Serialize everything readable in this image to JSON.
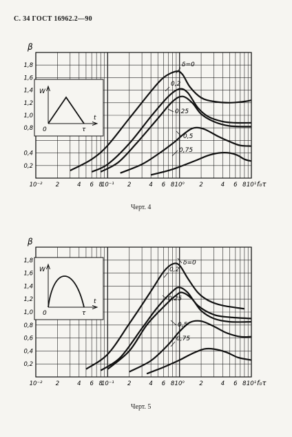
{
  "page": {
    "header": "С. 34 ГОСТ 16962.2—90"
  },
  "figures": [
    {
      "caption": "Черт. 4",
      "inset": {
        "ylabel": "W",
        "xlabel": "t",
        "origin": "0",
        "end": "τ",
        "pulse": "triangle"
      },
      "curve_labels": [
        "δ=0",
        "0,2",
        "0,25",
        "0,5",
        "0,75"
      ]
    },
    {
      "caption": "Черт. 5",
      "inset": {
        "ylabel": "W",
        "xlabel": "t",
        "origin": "0",
        "end": "τ",
        "pulse": "half-sine"
      },
      "curve_labels": [
        "δ=0",
        "0,2",
        "0,25",
        "0,5",
        "0,75"
      ]
    }
  ],
  "chart_data": [
    {
      "type": "line",
      "title": "",
      "ylabel": "β",
      "xlabel": "f₀τ",
      "x_scale": "log",
      "xlim": [
        0.01,
        10
      ],
      "ylim": [
        0,
        2.0
      ],
      "y_ticks": [
        "0,2",
        "0,4",
        "0,8",
        "1,0",
        "1,2",
        "1,4",
        "1,6",
        "1,8"
      ],
      "y_tick_values": [
        0.2,
        0.4,
        0.8,
        1.0,
        1.2,
        1.4,
        1.6,
        1.8
      ],
      "x_tick_labels": [
        "10⁻²",
        "2",
        "4",
        "6",
        "8",
        "10⁻¹",
        "2",
        "4",
        "6",
        "8",
        "10⁰",
        "2",
        "4",
        "6",
        "8",
        "10¹"
      ],
      "x_tick_values": [
        0.01,
        0.02,
        0.04,
        0.06,
        0.08,
        0.1,
        0.2,
        0.4,
        0.6,
        0.8,
        1,
        2,
        4,
        6,
        8,
        10
      ],
      "series": [
        {
          "name": "δ=0",
          "x": [
            0.03,
            0.06,
            0.1,
            0.2,
            0.4,
            0.6,
            0.9,
            1.1,
            1.4,
            2,
            3,
            5,
            8,
            10
          ],
          "y": [
            0.12,
            0.3,
            0.52,
            0.95,
            1.38,
            1.6,
            1.7,
            1.65,
            1.45,
            1.28,
            1.22,
            1.2,
            1.22,
            1.24
          ]
        },
        {
          "name": "0,2",
          "x": [
            0.06,
            0.1,
            0.2,
            0.4,
            0.7,
            1.0,
            1.3,
            1.8,
            2.5,
            4,
            6,
            10
          ],
          "y": [
            0.1,
            0.22,
            0.55,
            0.98,
            1.3,
            1.42,
            1.36,
            1.12,
            0.98,
            0.9,
            0.88,
            0.88
          ]
        },
        {
          "name": "0,25",
          "x": [
            0.08,
            0.14,
            0.25,
            0.5,
            0.8,
            1.1,
            1.5,
            2,
            3,
            5,
            10
          ],
          "y": [
            0.1,
            0.25,
            0.55,
            0.95,
            1.22,
            1.3,
            1.2,
            1.02,
            0.9,
            0.83,
            0.82
          ]
        },
        {
          "name": "0,5",
          "x": [
            0.15,
            0.3,
            0.5,
            0.8,
            1.2,
            1.6,
            2.2,
            3.5,
            5,
            7,
            10
          ],
          "y": [
            0.08,
            0.22,
            0.38,
            0.55,
            0.72,
            0.8,
            0.78,
            0.66,
            0.58,
            0.52,
            0.51
          ]
        },
        {
          "name": "0,75",
          "x": [
            0.4,
            0.7,
            1.0,
            1.6,
            2.5,
            3.5,
            5,
            6.5,
            8,
            10
          ],
          "y": [
            0.05,
            0.12,
            0.18,
            0.27,
            0.36,
            0.4,
            0.4,
            0.36,
            0.3,
            0.27
          ]
        }
      ]
    },
    {
      "type": "line",
      "title": "",
      "ylabel": "β",
      "xlabel": "f₀τ",
      "x_scale": "log",
      "xlim": [
        0.01,
        10
      ],
      "ylim": [
        0,
        2.0
      ],
      "y_ticks": [
        "0,2",
        "0,4",
        "0,6",
        "0,8",
        "1,0",
        "1,2",
        "1,4",
        "1,6",
        "1,8"
      ],
      "y_tick_values": [
        0.2,
        0.4,
        0.6,
        0.8,
        1.0,
        1.2,
        1.4,
        1.6,
        1.8
      ],
      "x_tick_labels": [
        "10⁻²",
        "2",
        "4",
        "6",
        "8",
        "10⁻¹",
        "2",
        "4",
        "6",
        "8",
        "10⁰",
        "2",
        "4",
        "6",
        "8",
        "10¹"
      ],
      "x_tick_values": [
        0.01,
        0.02,
        0.04,
        0.06,
        0.08,
        0.1,
        0.2,
        0.4,
        0.6,
        0.8,
        1,
        2,
        4,
        6,
        8,
        10
      ],
      "series": [
        {
          "name": "δ=0",
          "x": [
            0.05,
            0.1,
            0.2,
            0.4,
            0.6,
            0.8,
            1.0,
            1.3,
            1.8,
            2.5,
            4,
            8
          ],
          "y": [
            0.12,
            0.35,
            0.82,
            1.32,
            1.62,
            1.74,
            1.72,
            1.52,
            1.3,
            1.18,
            1.1,
            1.05
          ]
        },
        {
          "name": "0,2",
          "x": [
            0.08,
            0.15,
            0.3,
            0.5,
            0.8,
            1.0,
            1.3,
            1.8,
            3,
            5,
            10
          ],
          "y": [
            0.1,
            0.3,
            0.75,
            1.08,
            1.32,
            1.38,
            1.3,
            1.1,
            0.96,
            0.92,
            0.9
          ]
        },
        {
          "name": "0,25",
          "x": [
            0.1,
            0.2,
            0.35,
            0.6,
            0.9,
            1.1,
            1.5,
            2,
            3,
            5,
            10
          ],
          "y": [
            0.12,
            0.4,
            0.8,
            1.08,
            1.26,
            1.3,
            1.2,
            1.02,
            0.9,
            0.85,
            0.85
          ]
        },
        {
          "name": "0,5",
          "x": [
            0.2,
            0.4,
            0.7,
            1.0,
            1.4,
            2,
            3,
            4.5,
            7,
            10
          ],
          "y": [
            0.08,
            0.25,
            0.5,
            0.7,
            0.84,
            0.86,
            0.78,
            0.68,
            0.62,
            0.62
          ]
        },
        {
          "name": "0,75",
          "x": [
            0.35,
            0.6,
            1.0,
            1.5,
            2.2,
            3,
            4.5,
            6.5,
            10
          ],
          "y": [
            0.05,
            0.15,
            0.26,
            0.36,
            0.43,
            0.43,
            0.38,
            0.3,
            0.26
          ]
        }
      ]
    }
  ]
}
